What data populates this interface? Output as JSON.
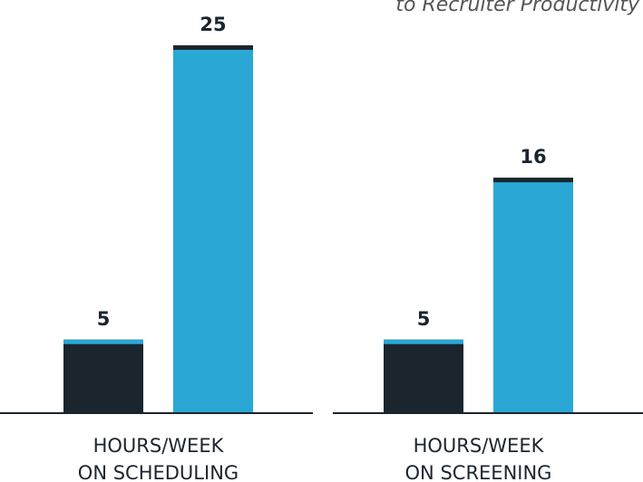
{
  "chart_data": {
    "type": "bar",
    "title": "to Recruiter Productivity",
    "categories": [
      [
        "HOURS/WEEK",
        "ON SCHEDULING"
      ],
      [
        "HOURS/WEEK",
        "ON SCREENING"
      ]
    ],
    "series": [
      {
        "color": "#1b252e",
        "values": [
          5,
          5
        ]
      },
      {
        "color": "#2ba7d6",
        "values": [
          25,
          16
        ]
      }
    ],
    "ylim": [
      0,
      25
    ]
  }
}
